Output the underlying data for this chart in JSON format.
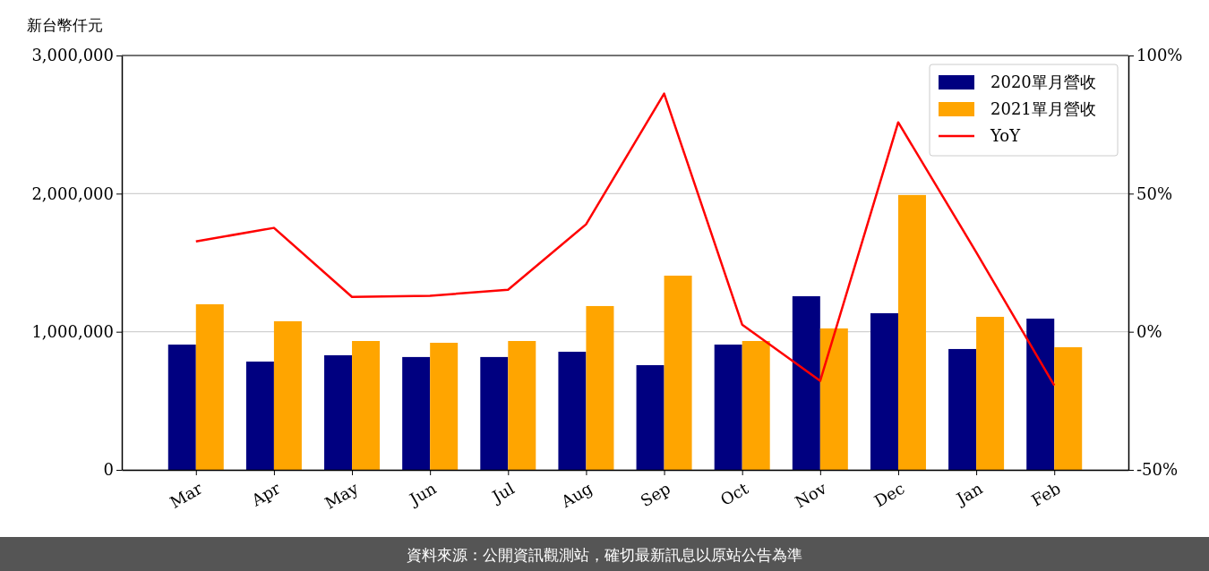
{
  "chart_data": {
    "type": "bar",
    "ylabel": "新台幣仟元",
    "categories": [
      "Mar",
      "Apr",
      "May",
      "Jun",
      "Jul",
      "Aug",
      "Sep",
      "Oct",
      "Nov",
      "Dec",
      "Jan",
      "Feb"
    ],
    "series": [
      {
        "name": "2020單月營收",
        "color": "#000080",
        "values": [
          907000,
          784000,
          830000,
          817000,
          817000,
          855000,
          758000,
          907000,
          1257000,
          1134000,
          875000,
          1095000
        ]
      },
      {
        "name": "2021單月營收",
        "color": "#ffa500",
        "values": [
          1199000,
          1076000,
          933000,
          920000,
          933000,
          1186000,
          1406000,
          933000,
          1024000,
          1990000,
          1108000,
          888000
        ]
      },
      {
        "name": "YoY",
        "type": "line",
        "axis": "y2",
        "color": "#ff0000",
        "values": [
          32.7,
          37.6,
          12.6,
          13,
          15.2,
          38.9,
          86.2,
          2.6,
          -17.8,
          75.8,
          28.8,
          -19.4
        ]
      }
    ],
    "ylim": [
      0,
      3000000
    ],
    "yticks": [
      {
        "value": 0,
        "label": "0"
      },
      {
        "value": 1000000,
        "label": "1,000,000"
      },
      {
        "value": 2000000,
        "label": "2,000,000"
      },
      {
        "value": 3000000,
        "label": "3,000,000"
      }
    ],
    "y2lim": [
      -50,
      100
    ],
    "y2ticks": [
      {
        "value": -50,
        "label": "-50%"
      },
      {
        "value": 0,
        "label": "0%"
      },
      {
        "value": 50,
        "label": "50%"
      },
      {
        "value": 100,
        "label": "100%"
      }
    ],
    "grid": "y",
    "legend": "top right",
    "annotations": [
      "資料來源：公開資訊觀測站，確切最新訊息以原站公告為準"
    ]
  }
}
